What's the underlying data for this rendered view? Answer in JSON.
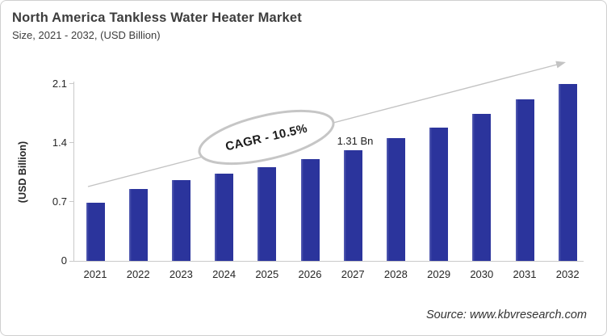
{
  "header": {
    "title": "North America Tankless Water Heater Market",
    "subtitle": "Size, 2021 - 2032, (USD Billion)"
  },
  "chart_data": {
    "type": "bar",
    "title": "North America Tankless Water Heater Market Size, 2021 - 2032, (USD Billion)",
    "categories": [
      "2021",
      "2022",
      "2023",
      "2024",
      "2025",
      "2026",
      "2027",
      "2028",
      "2029",
      "2030",
      "2031",
      "2032"
    ],
    "values": [
      0.69,
      0.85,
      0.96,
      1.03,
      1.11,
      1.21,
      1.31,
      1.45,
      1.58,
      1.74,
      1.91,
      2.1
    ],
    "xlabel": "",
    "ylabel": "(USD Billion)",
    "ylim": [
      0,
      2.2
    ],
    "yticks": [
      0,
      0.7,
      1.4,
      2.1
    ],
    "ytick_labels": [
      "0",
      "0.7",
      "1.4",
      "2.1"
    ],
    "grid": false,
    "legend": false,
    "annotations": {
      "cagr_text": "CAGR - 10.5%",
      "data_label": {
        "category": "2027",
        "text": "1.31 Bn"
      },
      "trend_arrow": "rising left-to-right"
    }
  },
  "footer": {
    "source": "Source: www.kbvresearch.com"
  },
  "colors": {
    "bar": "#2b349c",
    "bar_highlight": "#5a62b5",
    "axis": "#c9c9c9",
    "arrow": "#c3c3c3",
    "ellipse_stroke": "#c6c6c6",
    "title_text": "#3d3d3d",
    "tick_text": "#262626"
  }
}
